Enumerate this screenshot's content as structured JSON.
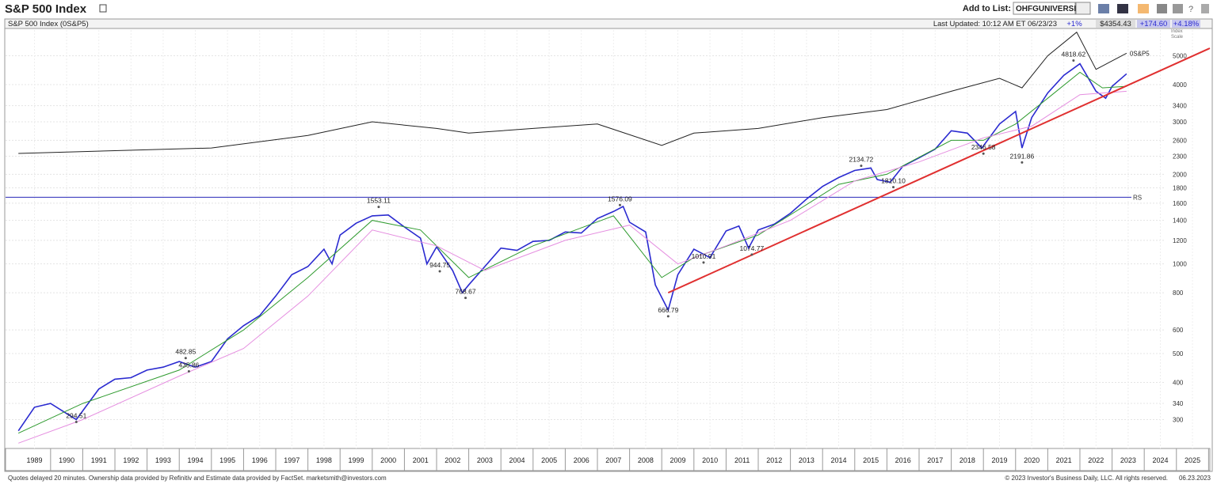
{
  "header": {
    "title": "S&P 500 Index",
    "add_to_list": "Add to List:",
    "list_name": "OHFGUNIVERSE"
  },
  "info_bar": {
    "name": "S&P 500 Index  (0S&P5)",
    "last_updated": "Last Updated: 10:12 AM ET 06/23/23",
    "pct_change_small": "+1%",
    "price": "$4354.43",
    "change": "+174.60",
    "change_pct": "+4.18%"
  },
  "scale_label": "Index Scale",
  "footer": {
    "left": "Quotes delayed 20 minutes. Ownership data provided by Refinitiv and Estimate data provided by FactSet. marketsmith@investors.com",
    "right": "© 2023 Investor's Business Daily, LLC. All rights reserved.",
    "date": "06.23.2023"
  },
  "chart_data": {
    "type": "line",
    "log_scale": true,
    "grid": true,
    "xlim": [
      1988.6,
      2026.04
    ],
    "ylim": [
      240,
      6100
    ],
    "yticks": [
      300,
      340,
      400,
      500,
      600,
      800,
      1000,
      1200,
      1400,
      1600,
      1800,
      2000,
      2300,
      2600,
      3000,
      3400,
      4000,
      5000
    ],
    "xticks": [
      {
        "value": 1989.5,
        "label": "1989"
      },
      {
        "value": 1990.5,
        "label": "1990"
      },
      {
        "value": 1991.5,
        "label": "1991"
      },
      {
        "value": 1992.5,
        "label": "1992"
      },
      {
        "value": 1993.5,
        "label": "1993"
      },
      {
        "value": 1994.5,
        "label": "1994"
      },
      {
        "value": 1995.5,
        "label": "1995"
      },
      {
        "value": 1996.5,
        "label": "1996"
      },
      {
        "value": 1997.5,
        "label": "1997"
      },
      {
        "value": 1998.5,
        "label": "1998"
      },
      {
        "value": 1999.5,
        "label": "1999"
      },
      {
        "value": 2000.5,
        "label": "2000"
      },
      {
        "value": 2001.5,
        "label": "2001"
      },
      {
        "value": 2002.5,
        "label": "2002"
      },
      {
        "value": 2003.5,
        "label": "2003"
      },
      {
        "value": 2004.5,
        "label": "2004"
      },
      {
        "value": 2005.5,
        "label": "2005"
      },
      {
        "value": 2006.5,
        "label": "2006"
      },
      {
        "value": 2007.5,
        "label": "2007"
      },
      {
        "value": 2008.5,
        "label": "2008"
      },
      {
        "value": 2009.5,
        "label": "2009"
      },
      {
        "value": 2010.5,
        "label": "2010"
      },
      {
        "value": 2011.5,
        "label": "2011"
      },
      {
        "value": 2012.5,
        "label": "2012"
      },
      {
        "value": 2013.5,
        "label": "2013"
      },
      {
        "value": 2014.5,
        "label": "2014"
      },
      {
        "value": 2015.5,
        "label": "2015"
      },
      {
        "value": 2016.5,
        "label": "2016"
      },
      {
        "value": 2017.5,
        "label": "2017"
      },
      {
        "value": 2018.5,
        "label": "2018"
      },
      {
        "value": 2019.5,
        "label": "2019"
      },
      {
        "value": 2020.5,
        "label": "2020"
      },
      {
        "value": 2021.5,
        "label": "2021"
      },
      {
        "value": 2022.5,
        "label": "2022"
      },
      {
        "value": 2023.5,
        "label": "2023"
      },
      {
        "value": 2024.5,
        "label": "2024"
      },
      {
        "value": 2025.5,
        "label": "2025"
      }
    ],
    "series": [
      {
        "color": "#2a2ad0",
        "width": 1.6,
        "x": [
          1989.0,
          1989.5,
          1990.0,
          1990.8,
          1991.5,
          1992.0,
          1992.5,
          1993.0,
          1993.5,
          1994.0,
          1994.5,
          1995.0,
          1995.5,
          1996.0,
          1996.5,
          1997.0,
          1997.5,
          1998.0,
          1998.5,
          1998.75,
          1999.0,
          1999.5,
          2000.0,
          2000.5,
          2001.0,
          2001.5,
          2001.7,
          2002.0,
          2002.5,
          2002.8,
          2003.0,
          2003.5,
          2004.0,
          2004.5,
          2005.0,
          2005.5,
          2006.0,
          2006.5,
          2007.0,
          2007.5,
          2007.8,
          2008.0,
          2008.5,
          2008.8,
          2009.2,
          2009.5,
          2010.0,
          2010.5,
          2011.0,
          2011.4,
          2011.7,
          2012.0,
          2012.5,
          2013.0,
          2013.5,
          2014.0,
          2014.5,
          2015.0,
          2015.5,
          2015.7,
          2016.1,
          2016.5,
          2017.0,
          2017.5,
          2018.0,
          2018.5,
          2018.95,
          2019.5,
          2020.0,
          2020.2,
          2020.5,
          2021.0,
          2021.5,
          2022.0,
          2022.5,
          2022.8,
          2023.0,
          2023.45
        ],
        "values": [
          275,
          330,
          340,
          300,
          380,
          410,
          415,
          440,
          450,
          470,
          450,
          470,
          560,
          620,
          670,
          780,
          920,
          980,
          1120,
          1000,
          1250,
          1370,
          1450,
          1460,
          1330,
          1220,
          1000,
          1140,
          950,
          800,
          850,
          980,
          1130,
          1110,
          1190,
          1200,
          1280,
          1270,
          1420,
          1500,
          1560,
          1380,
          1280,
          850,
          700,
          920,
          1120,
          1050,
          1290,
          1340,
          1130,
          1300,
          1360,
          1480,
          1650,
          1820,
          1950,
          2060,
          2100,
          1920,
          1880,
          2130,
          2270,
          2430,
          2800,
          2750,
          2450,
          2950,
          3250,
          2450,
          3100,
          3750,
          4300,
          4700,
          3800,
          3600,
          3950,
          4350
        ]
      },
      {
        "color": "#2e9a2e",
        "width": 1,
        "x": [
          1989.0,
          1991.0,
          1994.0,
          1996.0,
          1998.0,
          2000.0,
          2001.5,
          2003.0,
          2005.0,
          2007.5,
          2009.0,
          2010.0,
          2012.0,
          2014.5,
          2016.0,
          2018.0,
          2019.0,
          2020.0,
          2021.0,
          2022.0,
          2022.7,
          2023.45
        ],
        "values": [
          270,
          340,
          440,
          600,
          900,
          1400,
          1300,
          900,
          1150,
          1450,
          900,
          1050,
          1250,
          1850,
          2000,
          2600,
          2600,
          2950,
          3600,
          4400,
          3900,
          3950
        ]
      },
      {
        "color": "#e58ee0",
        "width": 1,
        "x": [
          1989.0,
          1991.0,
          1994.0,
          1996.0,
          1998.0,
          2000.0,
          2002.0,
          2003.5,
          2006.0,
          2008.0,
          2009.5,
          2011.0,
          2013.0,
          2015.0,
          2017.0,
          2019.0,
          2020.5,
          2022.0,
          2023.45
        ],
        "values": [
          250,
          300,
          420,
          520,
          780,
          1300,
          1150,
          950,
          1200,
          1350,
          1000,
          1150,
          1400,
          1900,
          2200,
          2650,
          2900,
          3700,
          3800
        ]
      },
      {
        "color": "#222222",
        "width": 1,
        "x": [
          1989.0,
          1992.0,
          1995.0,
          1998.0,
          2000.0,
          2002.0,
          2003.0,
          2005.0,
          2007.0,
          2009.0,
          2010.0,
          2012.0,
          2014.0,
          2016.0,
          2018.0,
          2019.5,
          2020.2,
          2021.0,
          2021.9,
          2022.5,
          2023.45
        ],
        "values": [
          2350,
          2400,
          2450,
          2700,
          3000,
          2850,
          2750,
          2850,
          2950,
          2500,
          2750,
          2850,
          3100,
          3300,
          3800,
          4200,
          3900,
          5000,
          6000,
          4500,
          5100
        ]
      }
    ],
    "rs_label": "0S&P5",
    "reference_line": {
      "value": 1674,
      "label": "RS",
      "color": "#4040c0"
    },
    "trendline": {
      "x": [
        2009.2,
        2026.04
      ],
      "values": [
        800,
        5300
      ],
      "color": "#e03030"
    },
    "annotations": [
      {
        "x": 1990.8,
        "y": 294.51,
        "label": "294.51"
      },
      {
        "x": 1994.2,
        "y": 482.85,
        "label": "482.85"
      },
      {
        "x": 1994.3,
        "y": 435.86,
        "label": "435.86"
      },
      {
        "x": 2000.2,
        "y": 1553.11,
        "label": "1553.11"
      },
      {
        "x": 2002.1,
        "y": 944.75,
        "label": "944.75"
      },
      {
        "x": 2002.9,
        "y": 768.67,
        "label": "768.67"
      },
      {
        "x": 2007.7,
        "y": 1576.09,
        "label": "1576.09"
      },
      {
        "x": 2009.2,
        "y": 666.79,
        "label": "666.79"
      },
      {
        "x": 2010.3,
        "y": 1010.91,
        "label": "1010.91"
      },
      {
        "x": 2011.8,
        "y": 1074.77,
        "label": "1074.77"
      },
      {
        "x": 2015.2,
        "y": 2134.72,
        "label": "2134.72"
      },
      {
        "x": 2016.2,
        "y": 1810.1,
        "label": "1810.10"
      },
      {
        "x": 2019.0,
        "y": 2346.58,
        "label": "2346.58"
      },
      {
        "x": 2020.2,
        "y": 2191.86,
        "label": "2191.86"
      },
      {
        "x": 2021.8,
        "y": 4818.62,
        "label": "4818.62"
      }
    ]
  }
}
